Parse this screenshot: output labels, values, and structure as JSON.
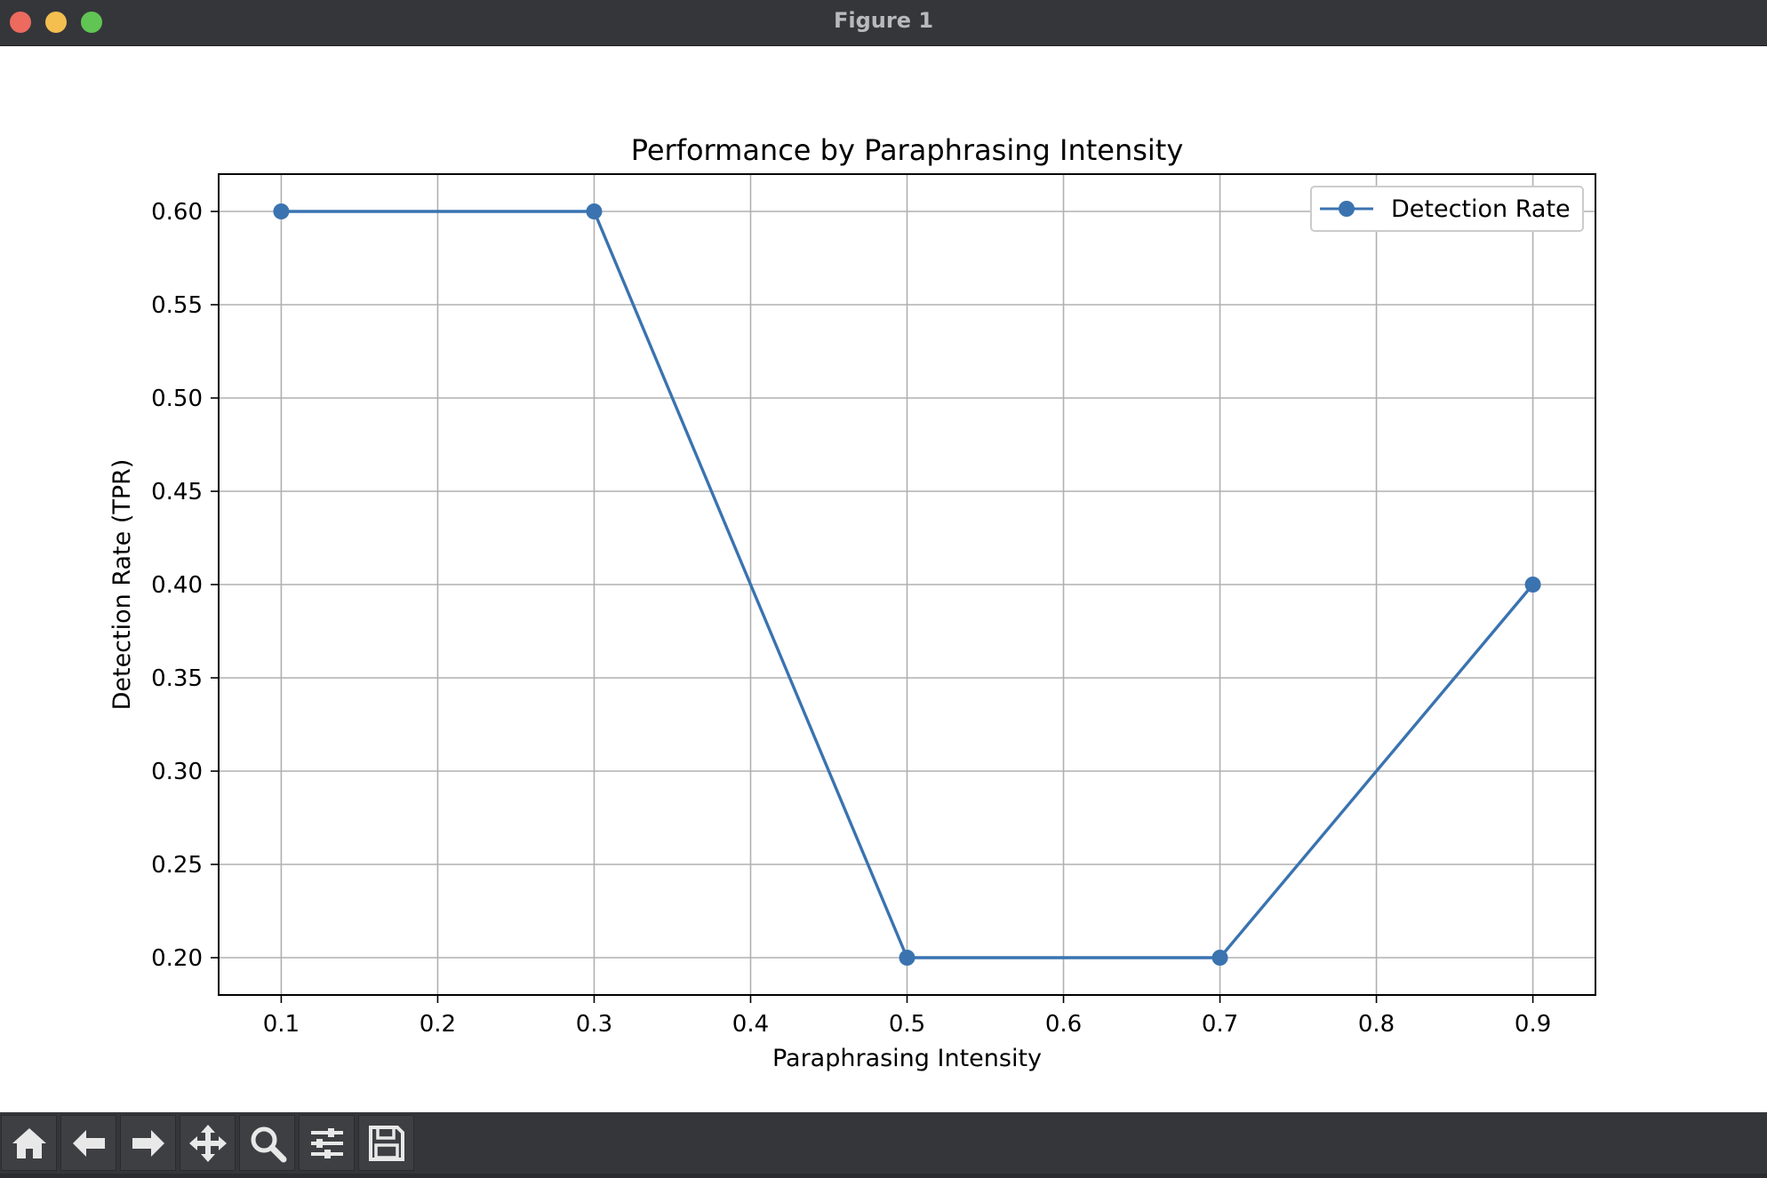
{
  "window": {
    "title": "Figure 1"
  },
  "toolbar": {
    "buttons": [
      {
        "name": "home-button",
        "icon": "home-icon"
      },
      {
        "name": "back-button",
        "icon": "arrow-left-icon"
      },
      {
        "name": "forward-button",
        "icon": "arrow-right-icon"
      },
      {
        "name": "pan-button",
        "icon": "move-icon"
      },
      {
        "name": "zoom-button",
        "icon": "magnifier-icon"
      },
      {
        "name": "configure-subplots-button",
        "icon": "sliders-icon"
      },
      {
        "name": "save-button",
        "icon": "floppy-disk-icon"
      }
    ]
  },
  "chart_data": {
    "type": "line",
    "title": "Performance by Paraphrasing Intensity",
    "xlabel": "Paraphrasing Intensity",
    "ylabel": "Detection Rate (TPR)",
    "x": [
      0.1,
      0.3,
      0.5,
      0.7,
      0.9
    ],
    "series": [
      {
        "name": "Detection Rate",
        "values": [
          0.6,
          0.6,
          0.2,
          0.2,
          0.4
        ],
        "color": "#3a73b0",
        "marker": "circle"
      }
    ],
    "xticks": [
      "0.1",
      "0.2",
      "0.3",
      "0.4",
      "0.5",
      "0.6",
      "0.7",
      "0.8",
      "0.9"
    ],
    "yticks": [
      "0.20",
      "0.25",
      "0.30",
      "0.35",
      "0.40",
      "0.45",
      "0.50",
      "0.55",
      "0.60"
    ],
    "xlim": [
      0.06,
      0.94
    ],
    "ylim": [
      0.18,
      0.62
    ],
    "grid": true,
    "legend_position": "top-right"
  }
}
